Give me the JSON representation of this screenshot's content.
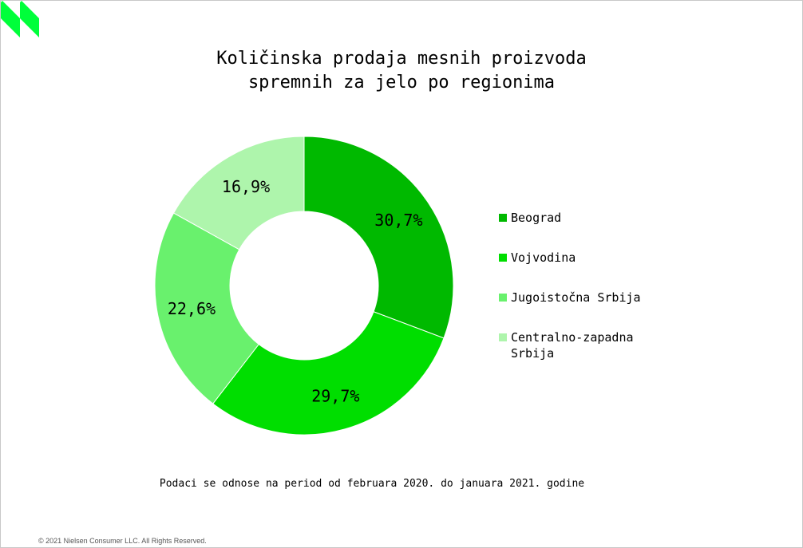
{
  "colors": {
    "brand_green": "#00ff3a",
    "beograd": "#00b900",
    "vojvodina": "#00de00",
    "jugoistocna_srbija": "#69f16d",
    "centralno_zapadna_srbija": "#aef5ac"
  },
  "logo": {
    "icon": "nielsen-logo-icon"
  },
  "chart_data": {
    "type": "donut",
    "title": [
      "Količinska prodaja mesnih proizvoda",
      "spremnih za jelo po regionima"
    ],
    "categories": [
      "Beograd",
      "Vojvodina",
      "Jugoistočna Srbija",
      "Centralno-zapadna Srbija"
    ],
    "values": [
      30.7,
      29.7,
      22.6,
      16.9
    ],
    "data_labels": [
      "30,7%",
      "29,7%",
      "22,6%",
      "16,9%"
    ],
    "legend_labels": [
      [
        "Beograd"
      ],
      [
        "Vojvodina"
      ],
      [
        "Jugoistočna Srbija"
      ],
      [
        "Centralno-zapadna",
        "Srbija"
      ]
    ],
    "legend_position": "right",
    "start": "top",
    "direction": "clockwise",
    "unit": "%"
  },
  "footnote": "Podaci se odnose na period od februara 2020. do januara 2021. godine",
  "copyright": "© 2021 Nielsen Consumer LLC. All Rights Reserved."
}
